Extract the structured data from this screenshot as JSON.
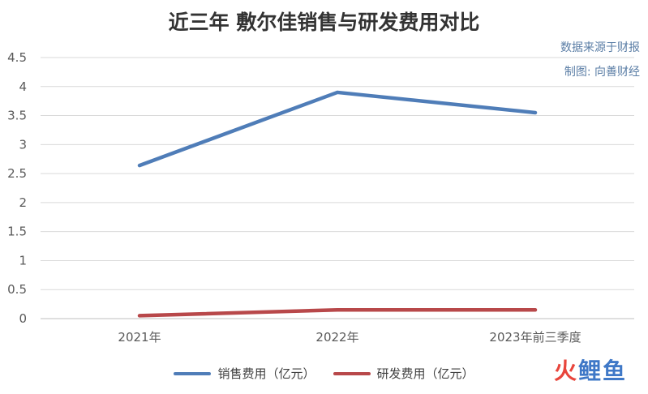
{
  "title": "近三年 敷尔佳销售与研发费用对比",
  "source_note": "数据来源于财报",
  "author_note": "制图: 向善财经",
  "watermark": {
    "part_a": "火",
    "part_b": "鲤鱼"
  },
  "chart_data": {
    "type": "line",
    "categories": [
      "2021年",
      "2022年",
      "2023年前三季度"
    ],
    "series": [
      {
        "name": "销售费用（亿元）",
        "color": "#4f7db8",
        "values": [
          2.64,
          3.9,
          3.55
        ]
      },
      {
        "name": "研发费用（亿元）",
        "color": "#b8484a",
        "values": [
          0.05,
          0.15,
          0.15
        ]
      }
    ],
    "ylim": [
      0,
      4.5
    ],
    "yticks": [
      "0",
      "0.5",
      "1",
      "1.5",
      "2",
      "2.5",
      "3",
      "3.5",
      "4",
      "4.5"
    ],
    "grid": true,
    "legend_position": "bottom"
  }
}
